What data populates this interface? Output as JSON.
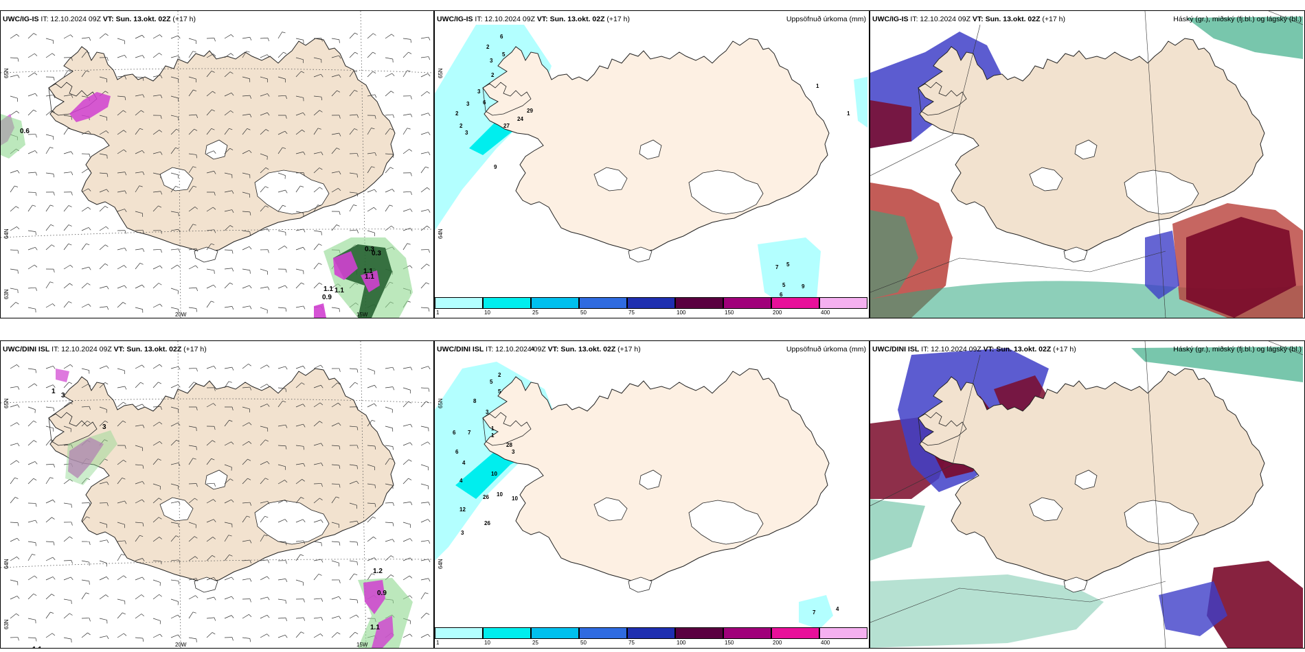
{
  "panels": [
    {
      "id": "p1",
      "model": "UWC/IG-IS",
      "it_label": "IT:",
      "it_value": "12.10.2024 09Z",
      "vt_label": "VT:",
      "vt_value": "Sun. 13.okt. 02Z",
      "lead": "(+17 h)",
      "right_title": "",
      "kind": "wind",
      "lat_labels": [
        "65N",
        "64N",
        "63N"
      ],
      "lon_labels": [
        "20W",
        "15W"
      ],
      "values": [
        "0.6",
        "1.1",
        "1.1",
        "0.3",
        "1.1",
        "1.1",
        "0.9",
        "0.3"
      ]
    },
    {
      "id": "p2",
      "model": "UWC/IG-IS",
      "it_label": "IT:",
      "it_value": "12.10.2024 09Z",
      "vt_label": "VT:",
      "vt_value": "Sun. 13.okt. 02Z",
      "lead": "(+17 h)",
      "right_title": "Uppsöfnuð úrkoma (mm)",
      "kind": "precip",
      "lat_labels": [
        "65N",
        "64N"
      ],
      "values": [
        "2",
        "6",
        "3",
        "5",
        "2",
        "3",
        "2",
        "3",
        "6",
        "3",
        "2",
        "27",
        "24",
        "29",
        "9",
        "1",
        "1",
        "7",
        "5",
        "5",
        "9",
        "6"
      ]
    },
    {
      "id": "p3",
      "model": "UWC/IG-IS",
      "it_label": "IT:",
      "it_value": "12.10.2024 09Z",
      "vt_label": "VT:",
      "vt_value": "Sun. 13.okt. 02Z",
      "lead": "(+17 h)",
      "right_title": "Háský (gr.), miðský (fj.bl.) og lágský (bl.)",
      "kind": "cloud"
    },
    {
      "id": "p4",
      "model": "UWC/DINI ISL",
      "it_label": "IT:",
      "it_value": "12.10.2024 09Z",
      "vt_label": "VT:",
      "vt_value": "Sun. 13.okt. 02Z",
      "lead": "(+17 h)",
      "right_title": "",
      "kind": "wind",
      "lat_labels": [
        "65N",
        "64N",
        "63N"
      ],
      "lon_labels": [
        "20W",
        "15W"
      ],
      "values": [
        "3",
        "1",
        "3",
        "1.1",
        "1.2",
        "0.9",
        "1.1"
      ]
    },
    {
      "id": "p5",
      "model": "UWC/DINI ISL",
      "it_label": "IT:",
      "it_value": "12.10.2024 09Z",
      "vt_label": "VT:",
      "vt_value": "Sun. 13.okt. 02Z",
      "lead": "(+17 h)",
      "right_title": "Uppsöfnuð úrkoma (mm)",
      "kind": "precip",
      "lat_labels": [
        "65N",
        "64N"
      ],
      "values": [
        "4",
        "5",
        "2",
        "5",
        "8",
        "3",
        "6",
        "7",
        "6",
        "28",
        "26",
        "3",
        "4",
        "1",
        "10",
        "4",
        "10",
        "26",
        "10",
        "12",
        "3",
        "1",
        "7",
        "4"
      ]
    },
    {
      "id": "p6",
      "model": "UWC/DINI ISL",
      "it_label": "IT:",
      "it_value": "12.10.2024 09Z",
      "vt_label": "VT:",
      "vt_value": "Sun. 13.okt. 02Z",
      "lead": "(+17 h)",
      "right_title": "Háský (gr.), miðský (fj.bl.) og lágský (bl.)",
      "kind": "cloud"
    }
  ],
  "precip_legend": {
    "ticks": [
      "1",
      "10",
      "25",
      "50",
      "75",
      "100",
      "150",
      "200",
      "400"
    ],
    "colors": [
      "#b3ffff",
      "#00eeee",
      "#00c0ee",
      "#2f6be0",
      "#1f2fb0",
      "#5a0040",
      "#a0007a",
      "#e8109a",
      "#f5b0f0"
    ]
  },
  "colors": {
    "land": "#f2e2cf",
    "land_precip": "#fdf0e3",
    "ocean": "#ffffff",
    "wind_magenta": "#d040d0",
    "wind_green": "#8fd88f",
    "cloud_high": "#2fa87f",
    "cloud_mid": "#b8403a",
    "cloud_mid_dark": "#7a0a2a",
    "cloud_low": "#3f3fc8"
  }
}
